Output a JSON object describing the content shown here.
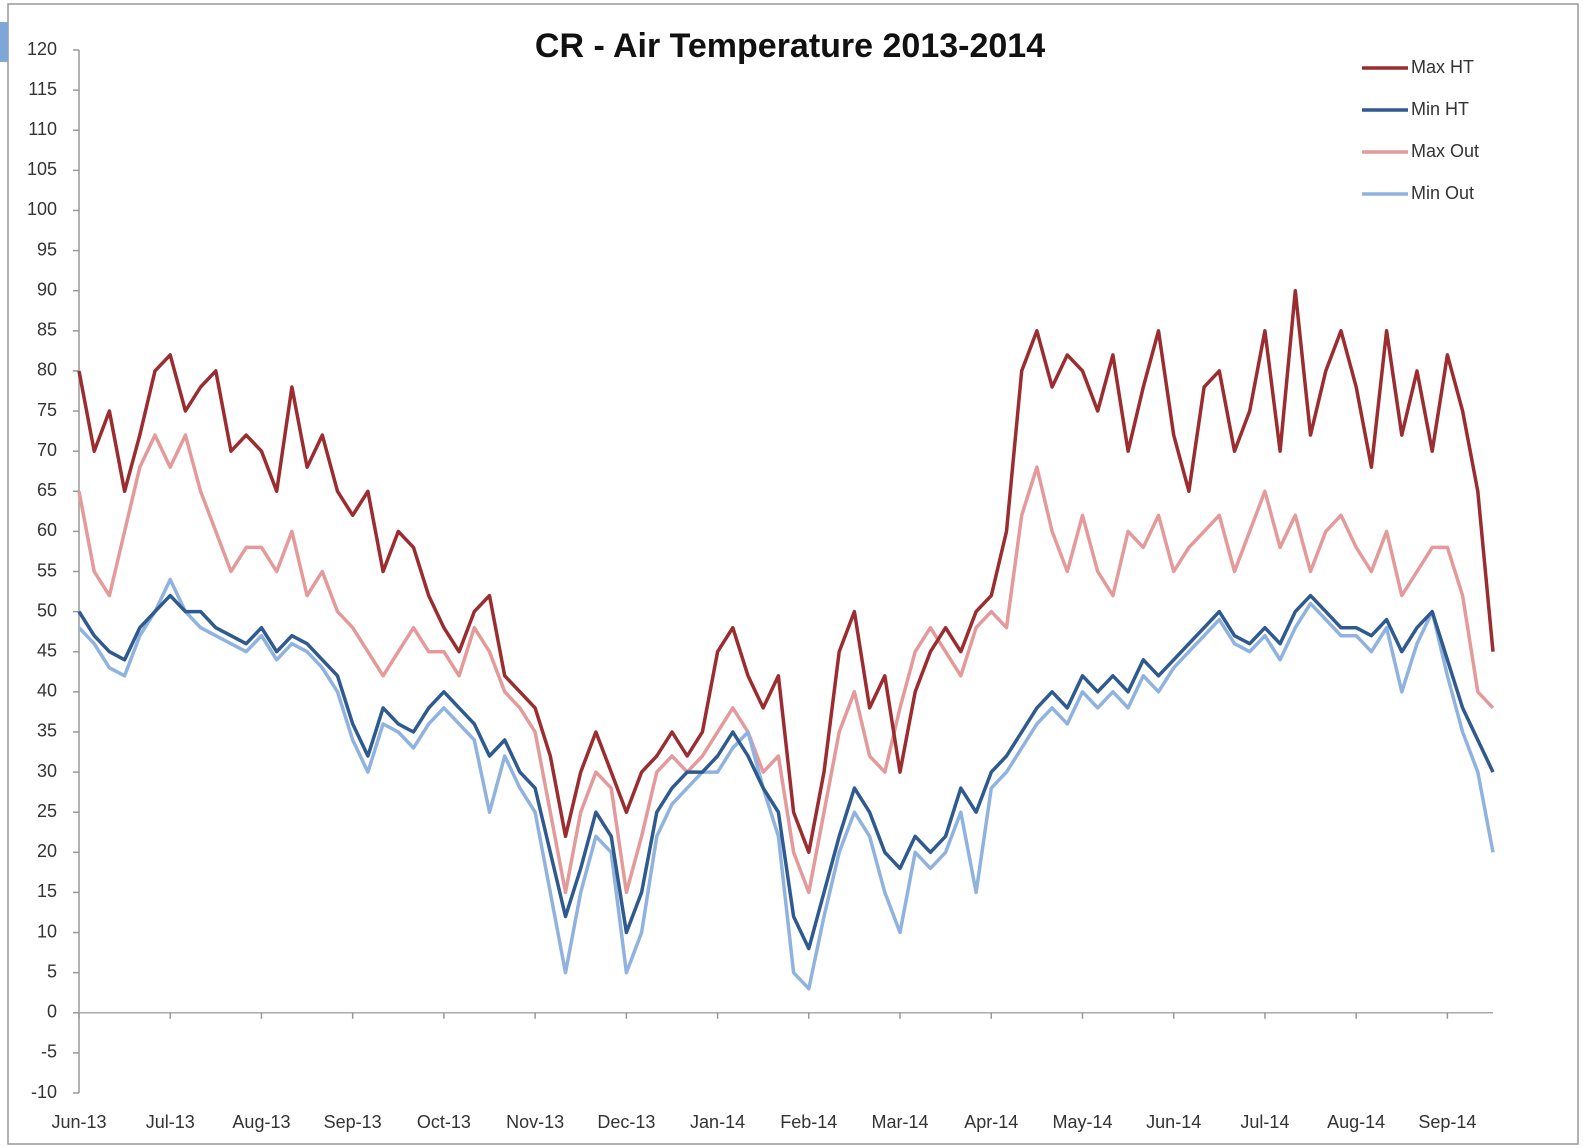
{
  "chart_data": {
    "type": "line",
    "title": "CR - Air Temperature 2013-2014",
    "categories": [
      "Jun-13",
      null,
      null,
      null,
      null,
      null,
      "Jul-13",
      null,
      null,
      null,
      null,
      null,
      "Aug-13",
      null,
      null,
      null,
      null,
      null,
      "Sep-13",
      null,
      null,
      null,
      null,
      null,
      "Oct-13",
      null,
      null,
      null,
      null,
      null,
      "Nov-13",
      null,
      null,
      null,
      null,
      null,
      "Dec-13",
      null,
      null,
      null,
      null,
      null,
      "Jan-14",
      null,
      null,
      null,
      null,
      null,
      "Feb-14",
      null,
      null,
      null,
      null,
      null,
      "Mar-14",
      null,
      null,
      null,
      null,
      null,
      "Apr-14",
      null,
      null,
      null,
      null,
      null,
      "May-14",
      null,
      null,
      null,
      null,
      null,
      "Jun-14",
      null,
      null,
      null,
      null,
      null,
      "Jul-14",
      null,
      null,
      null,
      null,
      null,
      "Aug-14",
      null,
      null,
      null,
      null,
      null,
      "Sep-14",
      null,
      null,
      null
    ],
    "series": [
      {
        "name": "Max HT",
        "color": "#9b2d30",
        "values": [
          80,
          70,
          75,
          65,
          72,
          80,
          82,
          75,
          78,
          80,
          70,
          72,
          70,
          65,
          78,
          68,
          72,
          65,
          62,
          65,
          55,
          60,
          58,
          52,
          48,
          45,
          50,
          52,
          42,
          40,
          38,
          32,
          22,
          30,
          35,
          30,
          25,
          30,
          32,
          35,
          32,
          35,
          45,
          48,
          42,
          38,
          42,
          25,
          20,
          30,
          45,
          50,
          38,
          42,
          30,
          40,
          45,
          48,
          45,
          50,
          52,
          60,
          80,
          85,
          78,
          82,
          80,
          75,
          82,
          70,
          78,
          85,
          72,
          65,
          78,
          80,
          70,
          75,
          85,
          70,
          90,
          72,
          80,
          85,
          78,
          68,
          85,
          72,
          80,
          70,
          82,
          75,
          65,
          45
        ]
      },
      {
        "name": "Min HT",
        "color": "#2e5a8f",
        "values": [
          50,
          47,
          45,
          44,
          48,
          50,
          52,
          50,
          50,
          48,
          47,
          46,
          48,
          45,
          47,
          46,
          44,
          42,
          36,
          32,
          38,
          36,
          35,
          38,
          40,
          38,
          36,
          32,
          34,
          30,
          28,
          20,
          12,
          18,
          25,
          22,
          10,
          15,
          25,
          28,
          30,
          30,
          32,
          35,
          32,
          28,
          25,
          12,
          8,
          15,
          22,
          28,
          25,
          20,
          18,
          22,
          20,
          22,
          28,
          25,
          30,
          32,
          35,
          38,
          40,
          38,
          42,
          40,
          42,
          40,
          44,
          42,
          44,
          46,
          48,
          50,
          47,
          46,
          48,
          46,
          50,
          52,
          50,
          48,
          48,
          47,
          49,
          45,
          48,
          50,
          44,
          38,
          34,
          30
        ]
      },
      {
        "name": "Max Out",
        "color": "#e49a9a",
        "values": [
          65,
          55,
          52,
          60,
          68,
          72,
          68,
          72,
          65,
          60,
          55,
          58,
          58,
          55,
          60,
          52,
          55,
          50,
          48,
          45,
          42,
          45,
          48,
          45,
          45,
          42,
          48,
          45,
          40,
          38,
          35,
          25,
          15,
          25,
          30,
          28,
          15,
          22,
          30,
          32,
          30,
          32,
          35,
          38,
          35,
          30,
          32,
          20,
          15,
          25,
          35,
          40,
          32,
          30,
          38,
          45,
          48,
          45,
          42,
          48,
          50,
          48,
          62,
          68,
          60,
          55,
          62,
          55,
          52,
          60,
          58,
          62,
          55,
          58,
          60,
          62,
          55,
          60,
          65,
          58,
          62,
          55,
          60,
          62,
          58,
          55,
          60,
          52,
          55,
          58,
          58,
          52,
          40,
          38
        ]
      },
      {
        "name": "Min Out",
        "color": "#8fb3de",
        "values": [
          48,
          46,
          43,
          42,
          47,
          50,
          54,
          50,
          48,
          47,
          46,
          45,
          47,
          44,
          46,
          45,
          43,
          40,
          34,
          30,
          36,
          35,
          33,
          36,
          38,
          36,
          34,
          25,
          32,
          28,
          25,
          15,
          5,
          15,
          22,
          20,
          5,
          10,
          22,
          26,
          28,
          30,
          30,
          33,
          35,
          28,
          22,
          5,
          3,
          12,
          20,
          25,
          22,
          15,
          10,
          20,
          18,
          20,
          25,
          15,
          28,
          30,
          33,
          36,
          38,
          36,
          40,
          38,
          40,
          38,
          42,
          40,
          43,
          45,
          47,
          49,
          46,
          45,
          47,
          44,
          48,
          51,
          49,
          47,
          47,
          45,
          48,
          40,
          46,
          50,
          42,
          35,
          30,
          20
        ]
      }
    ],
    "ylim": [
      -10,
      120
    ],
    "yticks": [
      -10,
      -5,
      0,
      5,
      10,
      15,
      20,
      25,
      30,
      35,
      40,
      45,
      50,
      55,
      60,
      65,
      70,
      75,
      80,
      85,
      90,
      95,
      100,
      105,
      110,
      115,
      120
    ]
  }
}
